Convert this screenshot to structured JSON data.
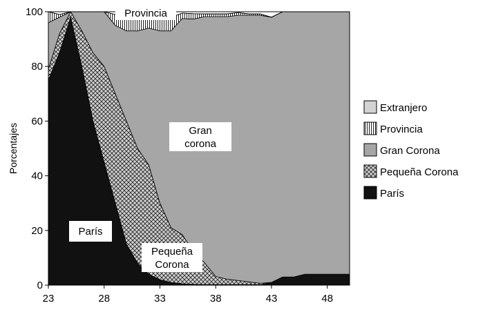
{
  "chart_data": {
    "type": "area",
    "stacked": true,
    "xlabel": "",
    "ylabel": "Porcentajes",
    "xlim": [
      23,
      50
    ],
    "ylim": [
      0,
      100
    ],
    "xticks": [
      "23",
      "28",
      "33",
      "38",
      "43",
      "48"
    ],
    "yticks": [
      "0",
      "20",
      "40",
      "60",
      "80",
      "100"
    ],
    "x": [
      23,
      24,
      25,
      26,
      27,
      28,
      29,
      30,
      31,
      32,
      33,
      34,
      35,
      36,
      37,
      38,
      39,
      40,
      41,
      42,
      43,
      44,
      45,
      46,
      47,
      48,
      49,
      50
    ],
    "series": [
      {
        "name": "París",
        "color": "#111111",
        "values": [
          75,
          85,
          98,
          80,
          60,
          45,
          30,
          15,
          8,
          4,
          2,
          1,
          0.5,
          0.3,
          0.2,
          0.2,
          0.2,
          0.2,
          0.2,
          0.2,
          1,
          3,
          3,
          4,
          4,
          4,
          4,
          4
        ]
      },
      {
        "name": "Pequeña Corona",
        "color": "#cccccc",
        "values": [
          4,
          7,
          2,
          13,
          25,
          35,
          40,
          45,
          42,
          40,
          28,
          20,
          18,
          12,
          8,
          3,
          2,
          1.5,
          1,
          0.5,
          0,
          0,
          0,
          0,
          0,
          0,
          0,
          0
        ]
      },
      {
        "name": "Gran Corona",
        "color": "#a6a6a6",
        "values": [
          17,
          6,
          0,
          7,
          15,
          20,
          25,
          33,
          43,
          50,
          63,
          72,
          79,
          85,
          90,
          95,
          96,
          97,
          97.5,
          98,
          97,
          97,
          97,
          96,
          96,
          96,
          96,
          96
        ]
      },
      {
        "name": "Provincia",
        "color": "#ffffff",
        "values": [
          4,
          1,
          0,
          0,
          0,
          0,
          4,
          6,
          5,
          4,
          5,
          5,
          2,
          2,
          1,
          1,
          1,
          1,
          0.5,
          0.5,
          0,
          0,
          0,
          0,
          0,
          0,
          0,
          0
        ]
      },
      {
        "name": "Extranjero",
        "color": "#d3d3d3",
        "values": [
          0,
          0,
          0,
          0,
          0,
          0,
          0,
          0,
          0,
          0,
          0,
          0,
          0,
          0,
          0,
          0,
          0,
          0,
          0,
          0,
          0,
          0,
          0,
          0,
          0,
          0,
          0,
          0
        ]
      }
    ],
    "legend": {
      "position": "right",
      "order": [
        "Extranjero",
        "Provincia",
        "Gran Corona",
        "Pequeña Corona",
        "París"
      ]
    },
    "annotations": {
      "provincia": "Provincia",
      "gran_corona_line1": "Gran",
      "gran_corona_line2": "corona",
      "paris": "París",
      "pequena_line1": "Pequeña",
      "pequena_line2": "Corona"
    }
  }
}
